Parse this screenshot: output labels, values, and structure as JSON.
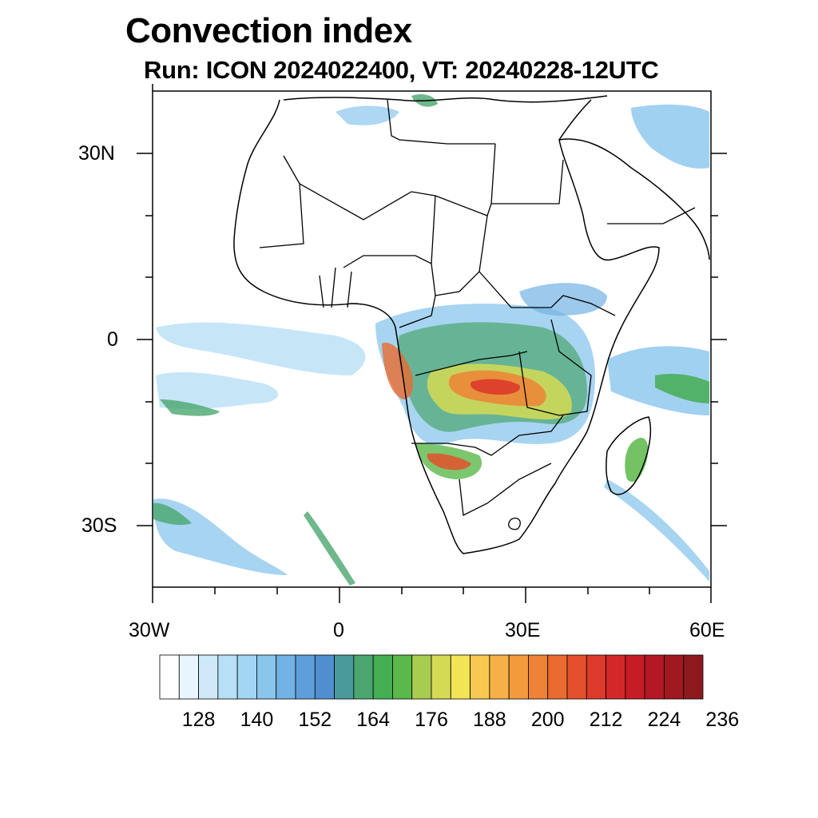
{
  "title": "Convection index",
  "subtitle": "Run: ICON 2024022400,  VT: 20240228-12UTC",
  "axes": {
    "lon_ticks": [
      "30W",
      "0",
      "30E",
      "60E"
    ],
    "lat_ticks": [
      "30N",
      "0",
      "30S"
    ]
  },
  "colorbar": {
    "labels": [
      "128",
      "140",
      "152",
      "164",
      "176",
      "188",
      "200",
      "212",
      "224",
      "236"
    ],
    "colors": [
      "#ffffff",
      "#e8f5fc",
      "#cfe9f8",
      "#b8e0f6",
      "#a2d6f2",
      "#8ac6ec",
      "#72b2e4",
      "#5e9fdb",
      "#4f8fcf",
      "#4a9a9a",
      "#4aa66e",
      "#45ad52",
      "#5bb84a",
      "#a8cc50",
      "#d5da55",
      "#f2e455",
      "#f8c850",
      "#f6b048",
      "#f29a3c",
      "#ee8236",
      "#ea6a30",
      "#e4502c",
      "#dc3a2a",
      "#d22828",
      "#c61c26",
      "#b31824",
      "#a01820",
      "#8c1a1c"
    ]
  },
  "map": {
    "region": "Africa and surrounding oceans",
    "extent_lon": [
      -30,
      60
    ],
    "extent_lat": [
      -40,
      40
    ]
  }
}
